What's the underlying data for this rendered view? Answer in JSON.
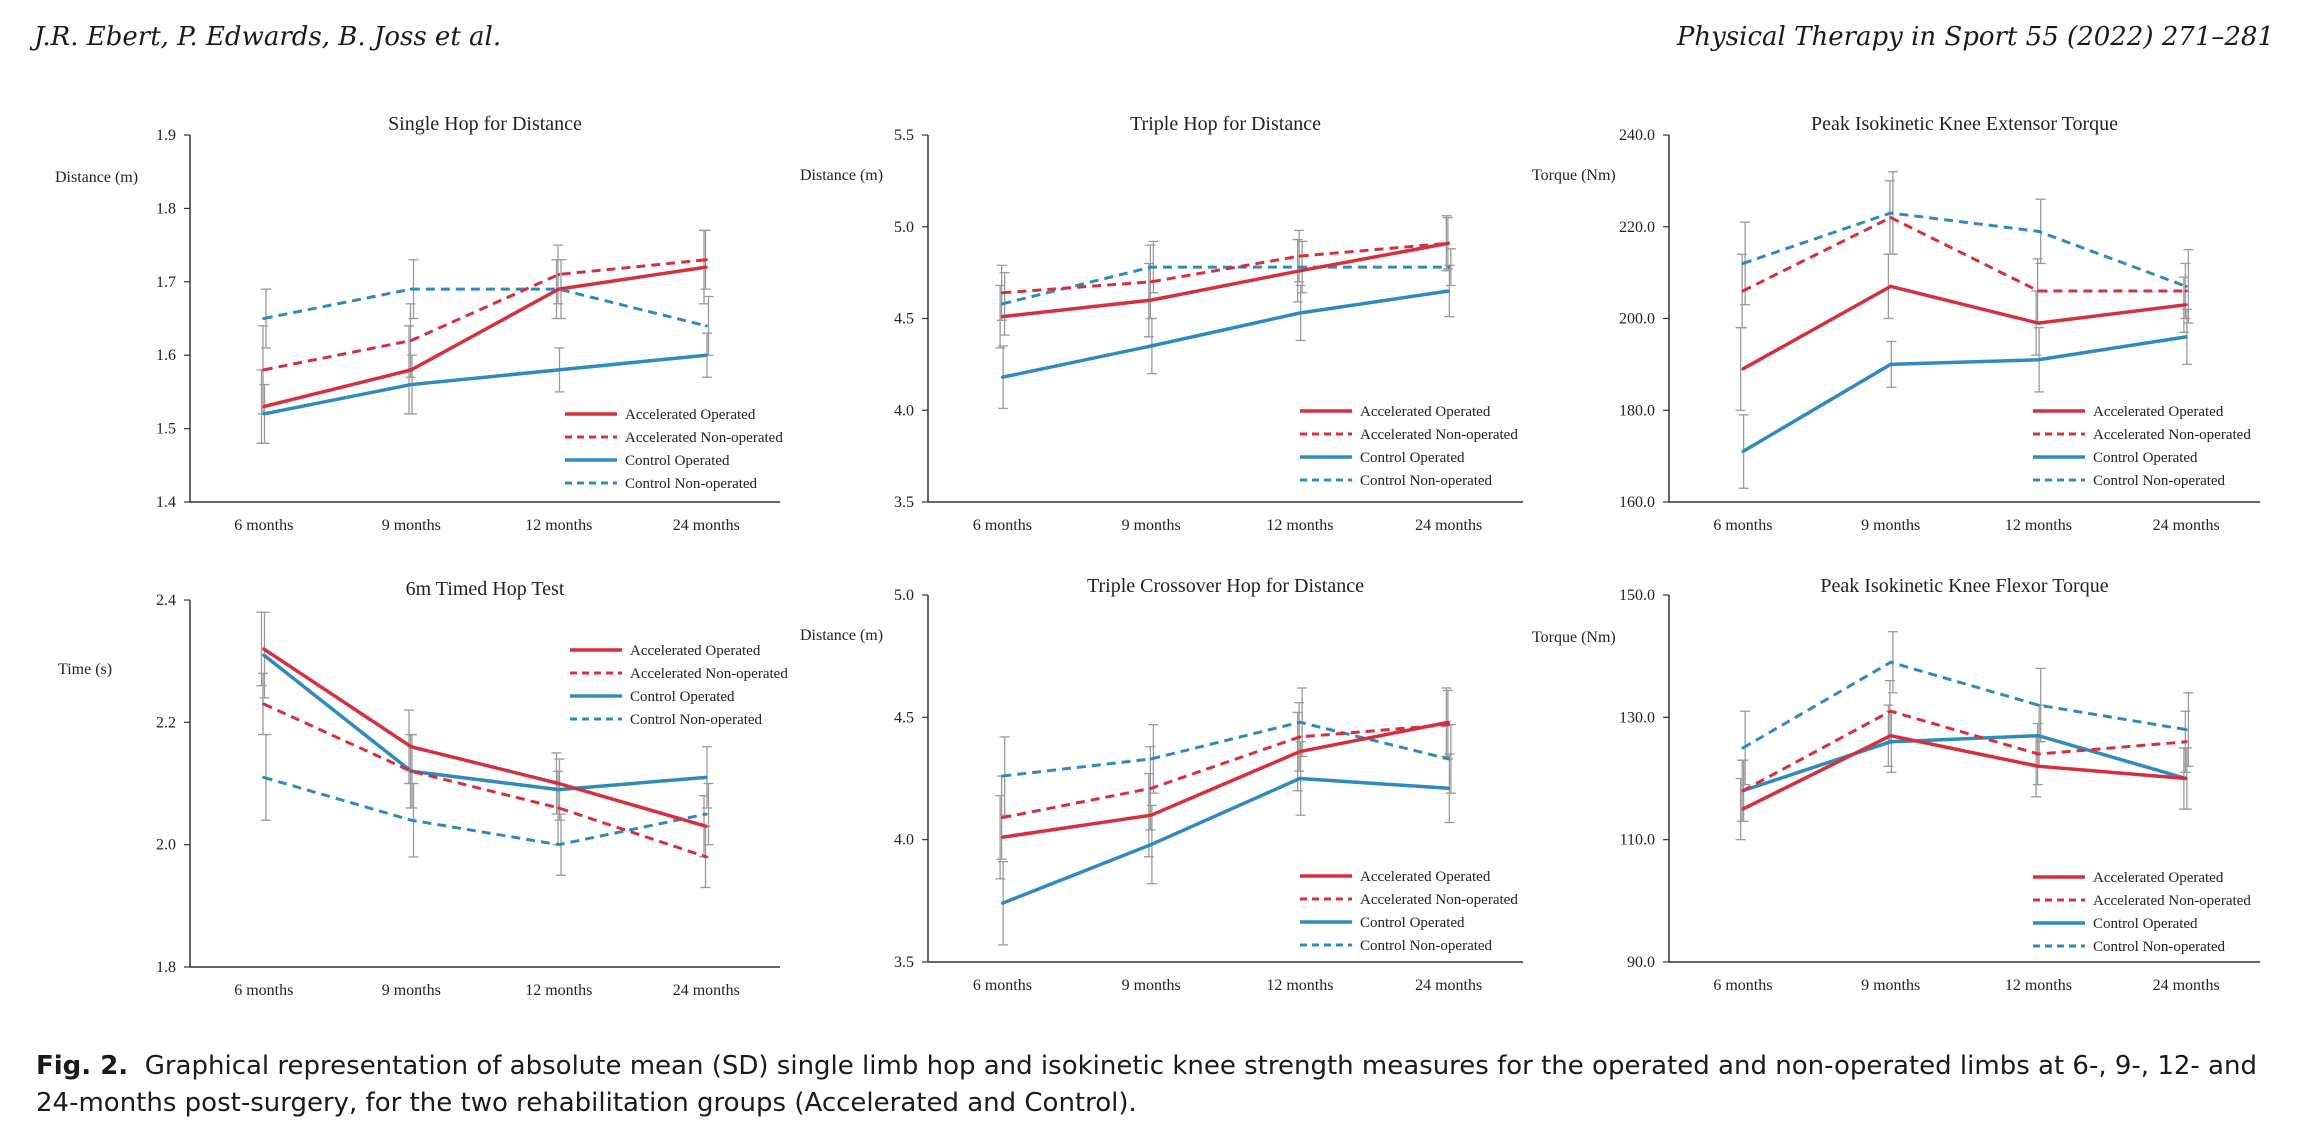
{
  "header": {
    "authors": "J.R. Ebert, P. Edwards, B. Joss et al.",
    "journal": "Physical Therapy in Sport 55 (2022) 271–281"
  },
  "caption": {
    "label": "Fig. 2.",
    "text": "Graphical representation of absolute mean (SD) single limb hop and isokinetic knee strength measures for the operated and non-operated limbs at 6-, 9-, 12- and 24-months post-surgery, for the two rehabilitation groups (Accelerated and Control)."
  },
  "colors": {
    "accelerated": "#d7303d",
    "control": "#2f8bbf",
    "error_bar": "#9a9a9a",
    "axis": "#333333"
  },
  "chart_data": [
    {
      "type": "line",
      "title": "Single Hop for Distance",
      "ylabel": "Distance (m)",
      "categories": [
        "6 months",
        "9 months",
        "12 months",
        "24 months"
      ],
      "ylim": [
        1.4,
        1.9
      ],
      "yticks": [
        "1.4",
        "1.5",
        "1.6",
        "1.7",
        "1.8",
        "1.9"
      ],
      "legend_position": "bottom-right",
      "series": [
        {
          "name": "Accelerated Operated",
          "values": [
            1.53,
            1.58,
            1.69,
            1.72
          ],
          "sd": [
            0.05,
            0.06,
            0.04,
            0.05
          ]
        },
        {
          "name": "Accelerated Non-operated",
          "values": [
            1.58,
            1.62,
            1.71,
            1.73
          ],
          "sd": [
            0.06,
            0.05,
            0.04,
            0.04
          ]
        },
        {
          "name": "Control Operated",
          "values": [
            1.52,
            1.56,
            1.58,
            1.6
          ],
          "sd": [
            0.04,
            0.04,
            0.03,
            0.03
          ]
        },
        {
          "name": "Control Non-operated",
          "values": [
            1.65,
            1.69,
            1.69,
            1.64
          ],
          "sd": [
            0.04,
            0.04,
            0.04,
            0.04
          ]
        }
      ]
    },
    {
      "type": "line",
      "title": "Triple Hop for Distance",
      "ylabel": "Distance (m)",
      "categories": [
        "6 months",
        "9 months",
        "12 months",
        "24 months"
      ],
      "ylim": [
        3.5,
        5.5
      ],
      "yticks": [
        "3.5",
        "4.0",
        "4.5",
        "5.0",
        "5.5"
      ],
      "legend_position": "bottom-right",
      "series": [
        {
          "name": "Accelerated Operated",
          "values": [
            4.51,
            4.6,
            4.76,
            4.91
          ],
          "sd": [
            0.17,
            0.2,
            0.17,
            0.15
          ]
        },
        {
          "name": "Accelerated Non-operated",
          "values": [
            4.64,
            4.7,
            4.84,
            4.91
          ],
          "sd": [
            0.15,
            0.2,
            0.14,
            0.14
          ]
        },
        {
          "name": "Control Operated",
          "values": [
            4.18,
            4.35,
            4.53,
            4.65
          ],
          "sd": [
            0.17,
            0.15,
            0.15,
            0.14
          ]
        },
        {
          "name": "Control Non-operated",
          "values": [
            4.58,
            4.78,
            4.78,
            4.78
          ],
          "sd": [
            0.17,
            0.14,
            0.14,
            0.1
          ]
        }
      ]
    },
    {
      "type": "line",
      "title": "Peak Isokinetic Knee Extensor Torque",
      "ylabel": "Torque (Nm)",
      "categories": [
        "6 months",
        "9 months",
        "12 months",
        "24 months"
      ],
      "ylim": [
        160,
        240
      ],
      "yticks": [
        "160.0",
        "180.0",
        "200.0",
        "220.0",
        "240.0"
      ],
      "legend_position": "bottom-right",
      "series": [
        {
          "name": "Accelerated Operated",
          "values": [
            189,
            207,
            199,
            203
          ],
          "sd": [
            9,
            7,
            7,
            6
          ]
        },
        {
          "name": "Accelerated Non-operated",
          "values": [
            206,
            222,
            206,
            206
          ],
          "sd": [
            8,
            8,
            7,
            6
          ]
        },
        {
          "name": "Control Operated",
          "values": [
            171,
            190,
            191,
            196
          ],
          "sd": [
            8,
            5,
            7,
            6
          ]
        },
        {
          "name": "Control Non-operated",
          "values": [
            212,
            223,
            219,
            207
          ],
          "sd": [
            9,
            9,
            7,
            8
          ]
        }
      ]
    },
    {
      "type": "line",
      "title": "6m Timed Hop Test",
      "ylabel": "Time (s)",
      "categories": [
        "6 months",
        "9 months",
        "12 months",
        "24 months"
      ],
      "ylim": [
        1.8,
        2.4
      ],
      "yticks": [
        "1.8",
        "2.0",
        "2.2",
        "2.4"
      ],
      "legend_position": "top-right",
      "series": [
        {
          "name": "Accelerated Operated",
          "values": [
            2.32,
            2.16,
            2.1,
            2.03
          ],
          "sd": [
            0.06,
            0.06,
            0.05,
            0.05
          ]
        },
        {
          "name": "Accelerated Non-operated",
          "values": [
            2.23,
            2.12,
            2.06,
            1.98
          ],
          "sd": [
            0.05,
            0.06,
            0.06,
            0.05
          ]
        },
        {
          "name": "Control Operated",
          "values": [
            2.31,
            2.12,
            2.09,
            2.11
          ],
          "sd": [
            0.07,
            0.06,
            0.05,
            0.05
          ]
        },
        {
          "name": "Control Non-operated",
          "values": [
            2.11,
            2.04,
            2.0,
            2.05
          ],
          "sd": [
            0.07,
            0.06,
            0.05,
            0.05
          ]
        }
      ]
    },
    {
      "type": "line",
      "title": "Triple Crossover Hop for Distance",
      "ylabel": "Distance (m)",
      "categories": [
        "6 months",
        "9 months",
        "12 months",
        "24 months"
      ],
      "ylim": [
        3.5,
        5.0
      ],
      "yticks": [
        "3.5",
        "4.0",
        "4.5",
        "5.0"
      ],
      "legend_position": "bottom-right",
      "series": [
        {
          "name": "Accelerated Operated",
          "values": [
            4.01,
            4.1,
            4.36,
            4.48
          ],
          "sd": [
            0.17,
            0.17,
            0.16,
            0.14
          ]
        },
        {
          "name": "Accelerated Non-operated",
          "values": [
            4.09,
            4.21,
            4.42,
            4.47
          ],
          "sd": [
            0.17,
            0.17,
            0.14,
            0.14
          ]
        },
        {
          "name": "Control Operated",
          "values": [
            3.74,
            3.98,
            4.25,
            4.21
          ],
          "sd": [
            0.17,
            0.16,
            0.15,
            0.14
          ]
        },
        {
          "name": "Control Non-operated",
          "values": [
            4.26,
            4.33,
            4.48,
            4.33
          ],
          "sd": [
            0.16,
            0.14,
            0.14,
            0.14
          ]
        }
      ]
    },
    {
      "type": "line",
      "title": "Peak Isokinetic Knee Flexor Torque",
      "ylabel": "Torque (Nm)",
      "categories": [
        "6 months",
        "9 months",
        "12 months",
        "24 months"
      ],
      "ylim": [
        90,
        150
      ],
      "yticks": [
        "90.0",
        "110.0",
        "130.0",
        "150.0"
      ],
      "legend_position": "bottom-right",
      "series": [
        {
          "name": "Accelerated Operated",
          "values": [
            115,
            127,
            122,
            120
          ],
          "sd": [
            5,
            5,
            5,
            5
          ]
        },
        {
          "name": "Accelerated Non-operated",
          "values": [
            118,
            131,
            124,
            126
          ],
          "sd": [
            5,
            5,
            5,
            5
          ]
        },
        {
          "name": "Control Operated",
          "values": [
            118,
            126,
            127,
            120
          ],
          "sd": [
            5,
            5,
            5,
            5
          ]
        },
        {
          "name": "Control Non-operated",
          "values": [
            125,
            139,
            132,
            128
          ],
          "sd": [
            6,
            5,
            6,
            6
          ]
        }
      ]
    }
  ]
}
